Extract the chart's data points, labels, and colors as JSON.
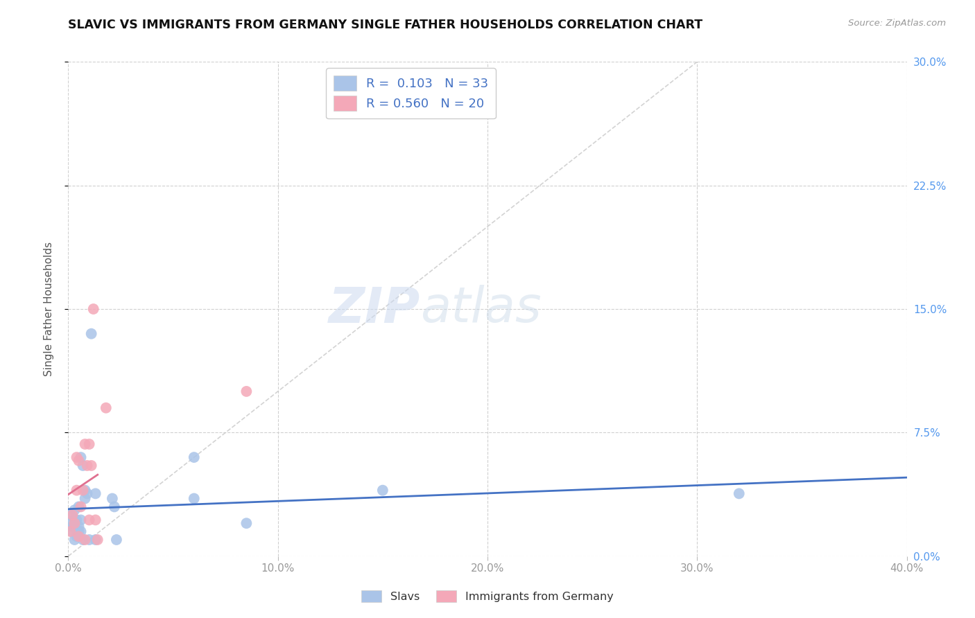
{
  "title": "SLAVIC VS IMMIGRANTS FROM GERMANY SINGLE FATHER HOUSEHOLDS CORRELATION CHART",
  "source": "Source: ZipAtlas.com",
  "ylabel": "Single Father Households",
  "xlim": [
    0.0,
    0.4
  ],
  "ylim": [
    0.0,
    0.3
  ],
  "xticks": [
    0.0,
    0.1,
    0.2,
    0.3,
    0.4
  ],
  "yticks": [
    0.0,
    0.075,
    0.15,
    0.225,
    0.3
  ],
  "xticklabels": [
    "0.0%",
    "10.0%",
    "20.0%",
    "30.0%",
    "40.0%"
  ],
  "yticklabels_right": [
    "0.0%",
    "7.5%",
    "15.0%",
    "22.5%",
    "30.0%"
  ],
  "background_color": "#ffffff",
  "grid_color": "#d0d0d0",
  "slavs_color": "#aac4e8",
  "germany_color": "#f4a8b8",
  "slavs_line_color": "#4472c4",
  "germany_line_color": "#e07090",
  "diagonal_color": "#c8c8c8",
  "watermark_zip": "ZIP",
  "watermark_atlas": "atlas",
  "legend_R_slavs": "0.103",
  "legend_N_slavs": "33",
  "legend_R_germany": "0.560",
  "legend_N_germany": "20",
  "slavs_x": [
    0.001,
    0.001,
    0.002,
    0.002,
    0.003,
    0.003,
    0.003,
    0.004,
    0.004,
    0.004,
    0.005,
    0.005,
    0.005,
    0.006,
    0.006,
    0.006,
    0.007,
    0.007,
    0.008,
    0.008,
    0.009,
    0.01,
    0.011,
    0.013,
    0.013,
    0.021,
    0.022,
    0.023,
    0.06,
    0.06,
    0.085,
    0.15,
    0.32
  ],
  "slavs_y": [
    0.02,
    0.025,
    0.015,
    0.018,
    0.01,
    0.022,
    0.028,
    0.012,
    0.016,
    0.022,
    0.015,
    0.018,
    0.03,
    0.015,
    0.022,
    0.06,
    0.055,
    0.01,
    0.035,
    0.04,
    0.038,
    0.01,
    0.135,
    0.038,
    0.01,
    0.035,
    0.03,
    0.01,
    0.06,
    0.035,
    0.02,
    0.04,
    0.038
  ],
  "germany_x": [
    0.001,
    0.002,
    0.003,
    0.004,
    0.004,
    0.005,
    0.005,
    0.006,
    0.007,
    0.008,
    0.008,
    0.009,
    0.01,
    0.01,
    0.011,
    0.012,
    0.013,
    0.014,
    0.018,
    0.085
  ],
  "germany_y": [
    0.015,
    0.025,
    0.02,
    0.04,
    0.06,
    0.012,
    0.058,
    0.03,
    0.04,
    0.01,
    0.068,
    0.055,
    0.068,
    0.022,
    0.055,
    0.15,
    0.022,
    0.01,
    0.09,
    0.1
  ]
}
